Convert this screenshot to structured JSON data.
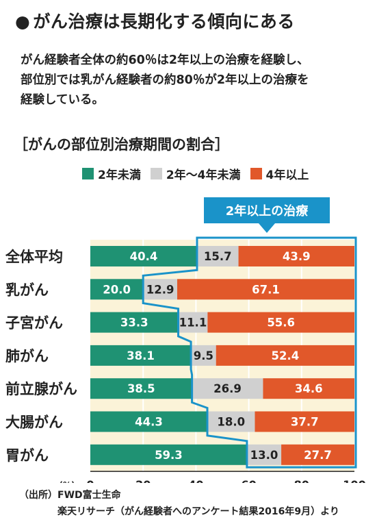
{
  "headline": {
    "bullet": "●",
    "text": "がん治療は長期化する傾向にある"
  },
  "lead": [
    "がん経験者全体の約60％は2年以上の治療を経験し、",
    "部位別では乳がん経験者の約80％が2年以上の治療を",
    "経験している。"
  ],
  "chart_data": {
    "type": "bar",
    "orientation": "horizontal",
    "stacked": true,
    "title": "［がんの部位別治療期間の割合］",
    "categories": [
      "全体平均",
      "乳がん",
      "子宮がん",
      "肺がん",
      "前立腺がん",
      "大腸がん",
      "胃がん"
    ],
    "series": [
      {
        "name": "2年未満",
        "color": "#1f9273",
        "values": [
          40.4,
          20.0,
          33.3,
          38.1,
          38.5,
          44.3,
          59.3
        ]
      },
      {
        "name": "2年～4年未満",
        "color": "#d0d0d0",
        "values": [
          15.7,
          12.9,
          11.1,
          9.5,
          26.9,
          18.0,
          13.0
        ]
      },
      {
        "name": "4年以上",
        "color": "#e1582a",
        "values": [
          43.9,
          67.1,
          55.6,
          52.4,
          34.6,
          37.7,
          27.7
        ]
      }
    ],
    "value_labels": [
      [
        "40.4",
        "20.0",
        "33.3",
        "38.1",
        "38.5",
        "44.3",
        "59.3"
      ],
      [
        "15.7",
        "12.9",
        "11.1",
        "9.5",
        "26.9",
        "18.0",
        "13.0"
      ],
      [
        "43.9",
        "67.1",
        "55.6",
        "52.4",
        "34.6",
        "37.7",
        "27.7"
      ]
    ],
    "xlabel": "(%)",
    "xlim": [
      0,
      100
    ],
    "xticks": [
      "0",
      "20",
      "40",
      "60",
      "80",
      "100"
    ],
    "grid": true,
    "legend_position": "top-right",
    "annotation": {
      "label": "2年以上の治療",
      "color": "#1a93c9"
    }
  },
  "colors": {
    "plot_background": "#fbf3d8",
    "gridline": "#ffffff",
    "annotation": "#1a93c9"
  },
  "source": {
    "line1": "（出所）FWD富士生命",
    "line2": "楽天リサーチ（がん経験者へのアンケート結果2016年9月）より"
  }
}
